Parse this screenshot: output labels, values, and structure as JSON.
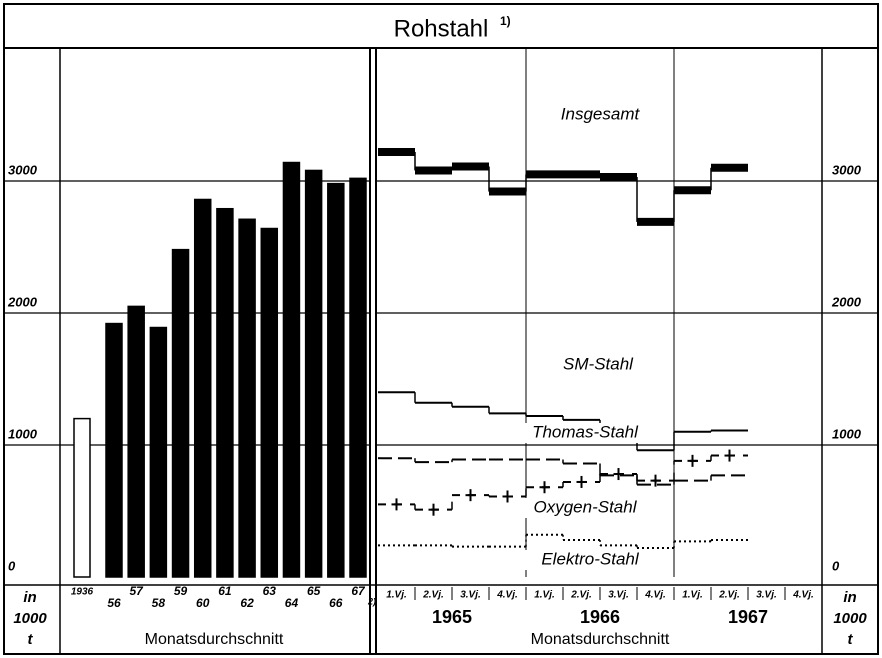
{
  "title": "Rohstahl",
  "title_note": "1)",
  "chart_data": [
    {
      "type": "bar",
      "categories": [
        "1936",
        "56",
        "57",
        "58",
        "59",
        "60",
        "61",
        "62",
        "63",
        "64",
        "65",
        "66",
        "67"
      ],
      "values": [
        1200,
        1920,
        2050,
        1890,
        2480,
        2860,
        2790,
        2710,
        2640,
        3140,
        3080,
        2980,
        3020
      ],
      "colors": [
        "#ffffff",
        "#000000",
        "#000000",
        "#000000",
        "#000000",
        "#000000",
        "#000000",
        "#000000",
        "#000000",
        "#000000",
        "#000000",
        "#000000",
        "#000000"
      ],
      "footnote": "2)",
      "ylim": [
        0,
        4000
      ],
      "yticks": [
        0,
        1000,
        2000,
        3000
      ],
      "grid": true,
      "xlabel": "Monatsdurchschnitt",
      "unit_label": [
        "in",
        "1000",
        "t"
      ]
    },
    {
      "type": "step",
      "categories": [
        "1.Vj.",
        "2.Vj.",
        "3.Vj.",
        "4.Vj.",
        "1.Vj.",
        "2.Vj.",
        "3.Vj.",
        "4.Vj.",
        "1.Vj.",
        "2.Vj.",
        "3.Vj.",
        "4.Vj."
      ],
      "x_groups": [
        "1965",
        "1966",
        "1967"
      ],
      "series": [
        {
          "name": "Insgesamt",
          "color": "#000000",
          "style": "thick",
          "values": [
            3220,
            3080,
            3110,
            2920,
            3050,
            3050,
            3030,
            2690,
            2930,
            3100,
            null,
            null
          ]
        },
        {
          "name": "SM-Stahl",
          "color": "#000000",
          "style": "solid",
          "values": [
            1400,
            1320,
            1290,
            1240,
            1220,
            1190,
            1080,
            960,
            1100,
            1110,
            null,
            null
          ]
        },
        {
          "name": "Thomas-Stahl",
          "color": "#000000",
          "style": "dashed",
          "values": [
            900,
            870,
            890,
            890,
            890,
            860,
            770,
            700,
            730,
            770,
            null,
            null
          ]
        },
        {
          "name": "Oxygen-Stahl",
          "color": "#000000",
          "style": "plus",
          "values": [
            550,
            510,
            620,
            610,
            680,
            720,
            780,
            730,
            880,
            920,
            null,
            null
          ]
        },
        {
          "name": "Elektro-Stahl",
          "color": "#000000",
          "style": "dotted",
          "values": [
            240,
            240,
            230,
            230,
            320,
            280,
            240,
            220,
            270,
            280,
            null,
            null
          ]
        }
      ],
      "ylim": [
        0,
        4000
      ],
      "yticks": [
        0,
        1000,
        2000,
        3000
      ],
      "grid": true,
      "xlabel": "Monatsdurchschnitt",
      "unit_label": [
        "in",
        "1000",
        "t"
      ]
    }
  ]
}
